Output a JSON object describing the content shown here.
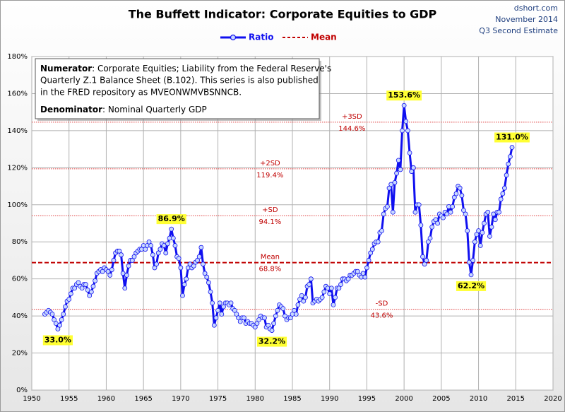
{
  "chart_data": {
    "type": "line",
    "title": "The Buffett Indicator: Corporate Equities to GDP",
    "source": [
      "dshort.com",
      "November 2014",
      "Q3 Second Estimate"
    ],
    "note": {
      "numerator_label": "Numerator",
      "numerator_lines": [
        ": Corporate Equities; Liability from the Federal Reserve's",
        "Quarterly Z.1 Balance Sheet (B.102). This series is also published",
        "in the FRED repository  as MVEONWMVBSNNCB."
      ],
      "denominator_label": "Denominator",
      "denominator_text": ": Nominal Quarterly GDP"
    },
    "xlim": [
      1950,
      2020
    ],
    "xticks": [
      1950,
      1955,
      1960,
      1965,
      1970,
      1975,
      1980,
      1985,
      1990,
      1995,
      2000,
      2005,
      2010,
      2015,
      2020
    ],
    "ylim": [
      0,
      180
    ],
    "yticks": [
      {
        "value": 0,
        "label": "0%"
      },
      {
        "value": 20,
        "label": "20%"
      },
      {
        "value": 40,
        "label": "40%"
      },
      {
        "value": 60,
        "label": "60%"
      },
      {
        "value": 80,
        "label": "80%"
      },
      {
        "value": 100,
        "label": "100%"
      },
      {
        "value": 120,
        "label": "120%"
      },
      {
        "value": 140,
        "label": "140%"
      },
      {
        "value": 160,
        "label": "160%"
      },
      {
        "value": 180,
        "label": "180%"
      }
    ],
    "grid": true,
    "x": [
      1951.75,
      1952,
      1952.25,
      1952.5,
      1952.75,
      1953,
      1953.25,
      1953.5,
      1953.75,
      1954,
      1954.25,
      1954.5,
      1954.75,
      1955,
      1955.25,
      1955.5,
      1955.75,
      1956,
      1956.25,
      1956.5,
      1956.75,
      1957,
      1957.25,
      1957.5,
      1957.75,
      1958,
      1958.25,
      1958.5,
      1958.75,
      1959,
      1959.25,
      1959.5,
      1959.75,
      1960,
      1960.25,
      1960.5,
      1960.75,
      1961,
      1961.25,
      1961.5,
      1961.75,
      1962,
      1962.25,
      1962.5,
      1962.75,
      1963,
      1963.25,
      1963.5,
      1963.75,
      1964,
      1964.25,
      1964.5,
      1964.75,
      1965,
      1965.25,
      1965.5,
      1965.75,
      1966,
      1966.25,
      1966.5,
      1966.75,
      1967,
      1967.25,
      1967.5,
      1967.75,
      1968,
      1968.25,
      1968.5,
      1968.75,
      1969,
      1969.25,
      1969.5,
      1969.75,
      1970,
      1970.25,
      1970.5,
      1970.75,
      1971,
      1971.25,
      1971.5,
      1971.75,
      1972,
      1972.25,
      1972.5,
      1972.75,
      1973,
      1973.25,
      1973.5,
      1973.75,
      1974,
      1974.25,
      1974.5,
      1974.75,
      1975,
      1975.25,
      1975.5,
      1975.75,
      1976,
      1976.25,
      1976.5,
      1976.75,
      1977,
      1977.25,
      1977.5,
      1977.75,
      1978,
      1978.25,
      1978.5,
      1978.75,
      1979,
      1979.25,
      1979.5,
      1979.75,
      1980,
      1980.25,
      1980.5,
      1980.75,
      1981,
      1981.25,
      1981.5,
      1981.75,
      1982,
      1982.25,
      1982.5,
      1982.75,
      1983,
      1983.25,
      1983.5,
      1983.75,
      1984,
      1984.25,
      1984.5,
      1984.75,
      1985,
      1985.25,
      1985.5,
      1985.75,
      1986,
      1986.25,
      1986.5,
      1986.75,
      1987,
      1987.25,
      1987.5,
      1987.75,
      1988,
      1988.25,
      1988.5,
      1988.75,
      1989,
      1989.25,
      1989.5,
      1989.75,
      1990,
      1990.25,
      1990.5,
      1990.75,
      1991,
      1991.25,
      1991.5,
      1991.75,
      1992,
      1992.25,
      1992.5,
      1992.75,
      1993,
      1993.25,
      1993.5,
      1993.75,
      1994,
      1994.25,
      1994.5,
      1994.75,
      1995,
      1995.25,
      1995.5,
      1995.75,
      1996,
      1996.25,
      1996.5,
      1996.75,
      1997,
      1997.25,
      1997.5,
      1997.75,
      1998,
      1998.25,
      1998.5,
      1998.75,
      1999,
      1999.25,
      1999.5,
      1999.75,
      2000,
      2000.25,
      2000.5,
      2000.75,
      2001,
      2001.25,
      2001.5,
      2001.75,
      2002,
      2002.25,
      2002.5,
      2002.75,
      2003,
      2003.25,
      2003.5,
      2003.75,
      2004,
      2004.25,
      2004.5,
      2004.75,
      2005,
      2005.25,
      2005.5,
      2005.75,
      2006,
      2006.25,
      2006.5,
      2006.75,
      2007,
      2007.25,
      2007.5,
      2007.75,
      2008,
      2008.25,
      2008.5,
      2008.75,
      2009,
      2009.25,
      2009.5,
      2009.75,
      2010,
      2010.25,
      2010.5,
      2010.75,
      2011,
      2011.25,
      2011.5,
      2011.75,
      2012,
      2012.25,
      2012.5,
      2012.75,
      2013,
      2013.25,
      2013.5,
      2013.75,
      2014,
      2014.25,
      2014.5
    ],
    "series": [
      {
        "name": "Ratio",
        "color": "#1010f0",
        "marker_color": "#c8d8ff",
        "values": [
          41,
          42,
          43,
          42,
          41,
          38,
          36,
          33.0,
          35,
          38,
          41,
          45,
          48,
          49,
          52,
          55,
          55,
          57,
          58,
          56,
          55,
          57,
          57,
          54,
          51,
          53,
          56,
          59,
          63,
          64,
          65,
          64,
          66,
          65,
          64,
          62,
          65,
          70,
          74,
          75,
          75,
          73,
          63,
          55,
          62,
          67,
          70,
          70,
          72,
          74,
          75,
          76,
          76,
          78,
          76,
          78,
          80,
          78,
          73,
          66,
          68,
          74,
          76,
          79,
          78,
          74,
          79,
          82,
          86.9,
          82,
          78,
          72,
          71,
          66,
          51,
          57,
          60,
          66,
          68,
          66,
          67,
          69,
          70,
          72,
          77,
          68,
          63,
          61,
          58,
          53,
          47,
          35,
          39,
          43,
          47,
          41,
          45,
          47,
          47,
          46,
          47,
          44,
          43,
          41,
          39,
          37,
          39,
          39,
          36,
          37,
          36,
          36,
          35,
          34,
          36,
          38,
          40,
          39,
          39,
          34,
          35,
          33,
          32.2,
          36,
          40,
          43,
          46,
          45,
          44,
          40,
          38,
          39,
          39,
          41,
          43,
          41,
          46,
          49,
          51,
          48,
          50,
          56,
          57,
          60,
          47,
          48,
          49,
          48,
          49,
          50,
          53,
          56,
          55,
          52,
          55,
          46,
          50,
          55,
          55,
          57,
          60,
          60,
          59,
          60,
          62,
          62,
          63,
          64,
          64,
          62,
          61,
          63,
          61,
          66,
          70,
          74,
          76,
          79,
          80,
          80,
          85,
          86,
          95,
          98,
          99,
          109,
          111,
          96,
          112,
          117,
          124,
          119,
          140,
          153.6,
          145,
          140,
          128,
          118,
          120,
          96,
          100,
          100,
          89,
          72,
          68,
          70,
          80,
          82,
          88,
          91,
          92,
          90,
          95,
          94,
          93,
          96,
          95,
          99,
          96,
          99,
          104,
          106,
          110,
          109,
          105,
          97,
          95,
          86,
          69,
          62.2,
          70,
          80,
          84,
          86,
          78,
          85,
          90,
          95,
          96,
          83,
          88,
          95,
          92,
          96,
          96,
          103,
          106,
          109,
          116,
          122,
          126,
          131.0
        ]
      }
    ],
    "reference_lines": [
      {
        "name": "+3SD",
        "value": 144.6,
        "label": "144.6%",
        "color": "#e04040",
        "style": "dotted"
      },
      {
        "name": "+2SD",
        "value": 119.4,
        "label": "119.4%",
        "color": "#e04040",
        "style": "dotted"
      },
      {
        "name": "+SD",
        "value": 94.1,
        "label": "94.1%",
        "color": "#e04040",
        "style": "dotted"
      },
      {
        "name": "Mean",
        "value": 68.8,
        "label": "68.8%",
        "color": "#c00000",
        "style": "dashed"
      },
      {
        "name": "-SD",
        "value": 43.6,
        "label": "43.6%",
        "color": "#e04040",
        "style": "dotted"
      }
    ],
    "annotations": [
      {
        "x": 1953.5,
        "y": 33.0,
        "label": "33.0%",
        "anchor": "below"
      },
      {
        "x": 1968.75,
        "y": 86.9,
        "label": "86.9%",
        "anchor": "above"
      },
      {
        "x": 1982.25,
        "y": 32.2,
        "label": "32.2%",
        "anchor": "below"
      },
      {
        "x": 2000,
        "y": 153.6,
        "label": "153.6%",
        "anchor": "above"
      },
      {
        "x": 2009,
        "y": 62.2,
        "label": "62.2%",
        "anchor": "below"
      },
      {
        "x": 2014.5,
        "y": 131.0,
        "label": "131.0%",
        "anchor": "above"
      }
    ]
  }
}
